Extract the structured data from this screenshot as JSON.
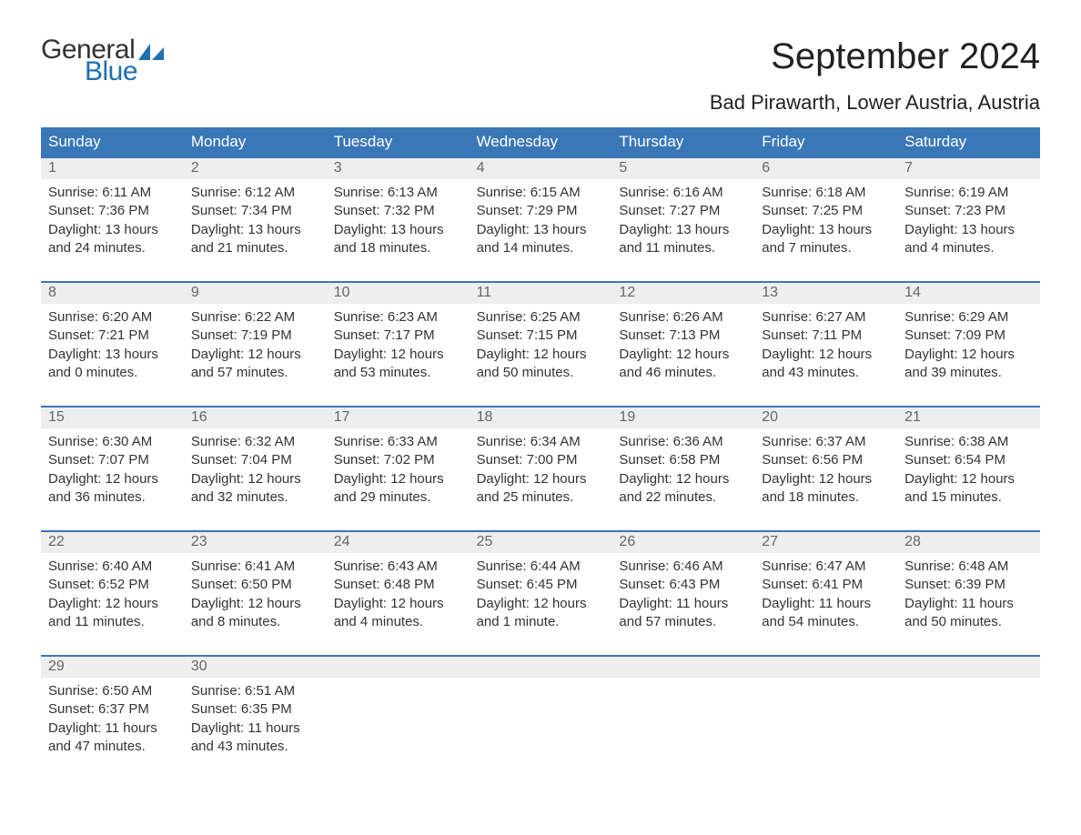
{
  "brand": {
    "word1": "General",
    "word2": "Blue",
    "word1_color": "#333333",
    "word2_color": "#1f6fb2"
  },
  "title": "September 2024",
  "location": "Bad Pirawarth, Lower Austria, Austria",
  "colors": {
    "header_bg": "#3a77b7",
    "header_text": "#ffffff",
    "band_bg": "#eeeeee",
    "band_text": "#666666",
    "body_text": "#333333",
    "rule": "#3a77b7",
    "page_bg": "#ffffff"
  },
  "typography": {
    "title_fontsize": 40,
    "location_fontsize": 22,
    "dayhead_fontsize": 17,
    "cell_fontsize": 15
  },
  "day_headers": [
    "Sunday",
    "Monday",
    "Tuesday",
    "Wednesday",
    "Thursday",
    "Friday",
    "Saturday"
  ],
  "labels": {
    "sunrise": "Sunrise:",
    "sunset": "Sunset:",
    "daylight": "Daylight:"
  },
  "weeks": [
    [
      {
        "n": "1",
        "sunrise": "6:11 AM",
        "sunset": "7:36 PM",
        "daylight": "13 hours and 24 minutes."
      },
      {
        "n": "2",
        "sunrise": "6:12 AM",
        "sunset": "7:34 PM",
        "daylight": "13 hours and 21 minutes."
      },
      {
        "n": "3",
        "sunrise": "6:13 AM",
        "sunset": "7:32 PM",
        "daylight": "13 hours and 18 minutes."
      },
      {
        "n": "4",
        "sunrise": "6:15 AM",
        "sunset": "7:29 PM",
        "daylight": "13 hours and 14 minutes."
      },
      {
        "n": "5",
        "sunrise": "6:16 AM",
        "sunset": "7:27 PM",
        "daylight": "13 hours and 11 minutes."
      },
      {
        "n": "6",
        "sunrise": "6:18 AM",
        "sunset": "7:25 PM",
        "daylight": "13 hours and 7 minutes."
      },
      {
        "n": "7",
        "sunrise": "6:19 AM",
        "sunset": "7:23 PM",
        "daylight": "13 hours and 4 minutes."
      }
    ],
    [
      {
        "n": "8",
        "sunrise": "6:20 AM",
        "sunset": "7:21 PM",
        "daylight": "13 hours and 0 minutes."
      },
      {
        "n": "9",
        "sunrise": "6:22 AM",
        "sunset": "7:19 PM",
        "daylight": "12 hours and 57 minutes."
      },
      {
        "n": "10",
        "sunrise": "6:23 AM",
        "sunset": "7:17 PM",
        "daylight": "12 hours and 53 minutes."
      },
      {
        "n": "11",
        "sunrise": "6:25 AM",
        "sunset": "7:15 PM",
        "daylight": "12 hours and 50 minutes."
      },
      {
        "n": "12",
        "sunrise": "6:26 AM",
        "sunset": "7:13 PM",
        "daylight": "12 hours and 46 minutes."
      },
      {
        "n": "13",
        "sunrise": "6:27 AM",
        "sunset": "7:11 PM",
        "daylight": "12 hours and 43 minutes."
      },
      {
        "n": "14",
        "sunrise": "6:29 AM",
        "sunset": "7:09 PM",
        "daylight": "12 hours and 39 minutes."
      }
    ],
    [
      {
        "n": "15",
        "sunrise": "6:30 AM",
        "sunset": "7:07 PM",
        "daylight": "12 hours and 36 minutes."
      },
      {
        "n": "16",
        "sunrise": "6:32 AM",
        "sunset": "7:04 PM",
        "daylight": "12 hours and 32 minutes."
      },
      {
        "n": "17",
        "sunrise": "6:33 AM",
        "sunset": "7:02 PM",
        "daylight": "12 hours and 29 minutes."
      },
      {
        "n": "18",
        "sunrise": "6:34 AM",
        "sunset": "7:00 PM",
        "daylight": "12 hours and 25 minutes."
      },
      {
        "n": "19",
        "sunrise": "6:36 AM",
        "sunset": "6:58 PM",
        "daylight": "12 hours and 22 minutes."
      },
      {
        "n": "20",
        "sunrise": "6:37 AM",
        "sunset": "6:56 PM",
        "daylight": "12 hours and 18 minutes."
      },
      {
        "n": "21",
        "sunrise": "6:38 AM",
        "sunset": "6:54 PM",
        "daylight": "12 hours and 15 minutes."
      }
    ],
    [
      {
        "n": "22",
        "sunrise": "6:40 AM",
        "sunset": "6:52 PM",
        "daylight": "12 hours and 11 minutes."
      },
      {
        "n": "23",
        "sunrise": "6:41 AM",
        "sunset": "6:50 PM",
        "daylight": "12 hours and 8 minutes."
      },
      {
        "n": "24",
        "sunrise": "6:43 AM",
        "sunset": "6:48 PM",
        "daylight": "12 hours and 4 minutes."
      },
      {
        "n": "25",
        "sunrise": "6:44 AM",
        "sunset": "6:45 PM",
        "daylight": "12 hours and 1 minute."
      },
      {
        "n": "26",
        "sunrise": "6:46 AM",
        "sunset": "6:43 PM",
        "daylight": "11 hours and 57 minutes."
      },
      {
        "n": "27",
        "sunrise": "6:47 AM",
        "sunset": "6:41 PM",
        "daylight": "11 hours and 54 minutes."
      },
      {
        "n": "28",
        "sunrise": "6:48 AM",
        "sunset": "6:39 PM",
        "daylight": "11 hours and 50 minutes."
      }
    ],
    [
      {
        "n": "29",
        "sunrise": "6:50 AM",
        "sunset": "6:37 PM",
        "daylight": "11 hours and 47 minutes."
      },
      {
        "n": "30",
        "sunrise": "6:51 AM",
        "sunset": "6:35 PM",
        "daylight": "11 hours and 43 minutes."
      },
      null,
      null,
      null,
      null,
      null
    ]
  ]
}
